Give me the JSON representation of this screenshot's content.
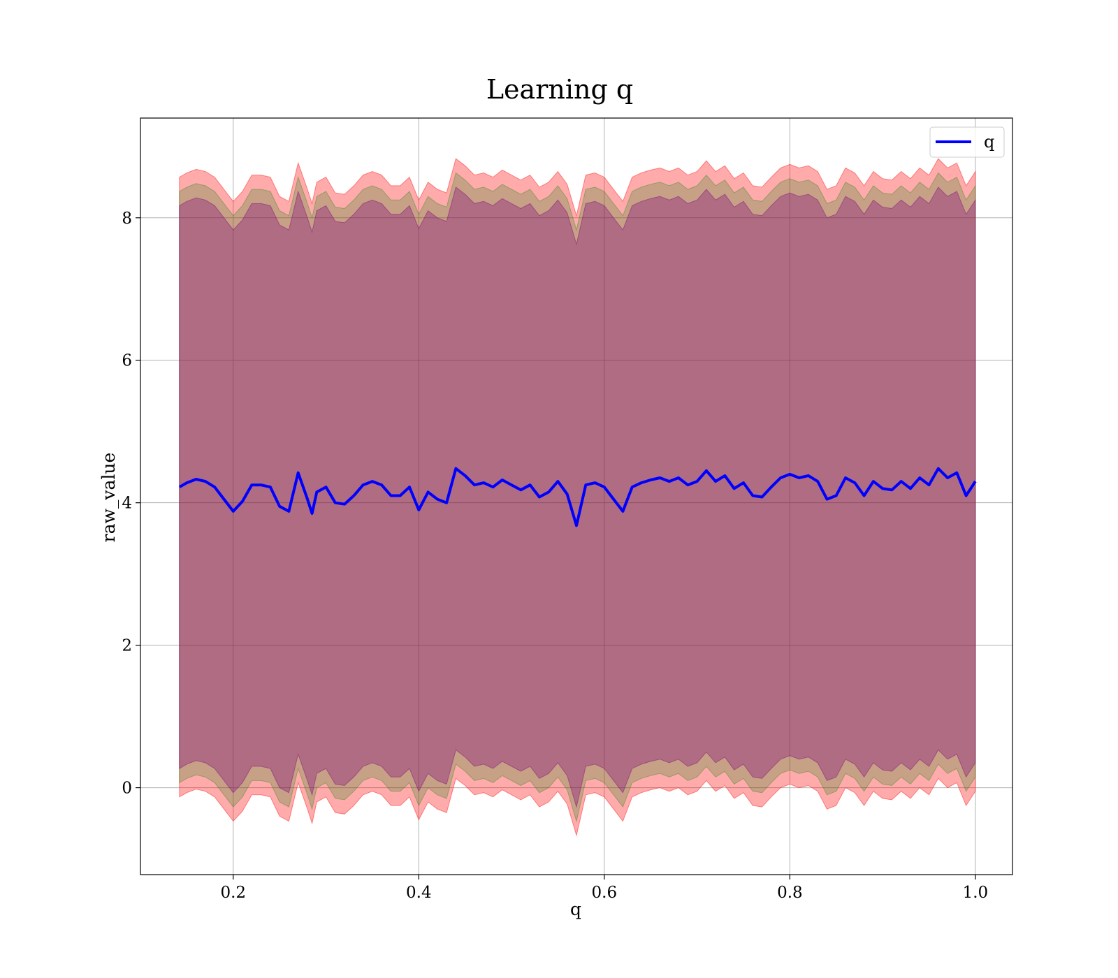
{
  "chart_data": {
    "type": "line",
    "title": "Learning q",
    "xlabel": "q",
    "ylabel": "raw_value",
    "xlim": [
      0.1,
      1.04
    ],
    "ylim": [
      -1.22,
      9.4
    ],
    "xticks": [
      0.2,
      0.4,
      0.6,
      0.8,
      1.0
    ],
    "xtick_labels": [
      "0.2",
      "0.4",
      "0.6",
      "0.8",
      "1.0"
    ],
    "yticks": [
      0,
      2,
      4,
      6,
      8
    ],
    "ytick_labels": [
      "0",
      "2",
      "4",
      "6",
      "8"
    ],
    "grid": true,
    "legend_position": "top-right",
    "series": [
      {
        "name": "q",
        "color": "#0000ff",
        "x": [
          0.142,
          0.15,
          0.16,
          0.17,
          0.18,
          0.19,
          0.2,
          0.21,
          0.22,
          0.23,
          0.24,
          0.25,
          0.26,
          0.27,
          0.28,
          0.285,
          0.29,
          0.3,
          0.31,
          0.32,
          0.33,
          0.34,
          0.35,
          0.36,
          0.37,
          0.38,
          0.39,
          0.4,
          0.41,
          0.42,
          0.43,
          0.44,
          0.45,
          0.46,
          0.47,
          0.48,
          0.49,
          0.5,
          0.51,
          0.52,
          0.53,
          0.54,
          0.55,
          0.56,
          0.57,
          0.58,
          0.59,
          0.6,
          0.61,
          0.62,
          0.63,
          0.64,
          0.65,
          0.66,
          0.67,
          0.68,
          0.69,
          0.7,
          0.71,
          0.72,
          0.73,
          0.74,
          0.75,
          0.76,
          0.77,
          0.78,
          0.79,
          0.8,
          0.81,
          0.82,
          0.83,
          0.84,
          0.85,
          0.86,
          0.87,
          0.88,
          0.89,
          0.9,
          0.91,
          0.92,
          0.93,
          0.94,
          0.95,
          0.96,
          0.97,
          0.98,
          0.99,
          1.0
        ],
        "y": [
          4.22,
          4.28,
          4.33,
          4.3,
          4.22,
          4.05,
          3.88,
          4.02,
          4.25,
          4.25,
          4.22,
          3.95,
          3.88,
          4.42,
          4.05,
          3.85,
          4.15,
          4.22,
          4.0,
          3.98,
          4.1,
          4.25,
          4.3,
          4.25,
          4.1,
          4.1,
          4.22,
          3.9,
          4.15,
          4.05,
          4.0,
          4.48,
          4.38,
          4.25,
          4.28,
          4.22,
          4.32,
          4.25,
          4.18,
          4.25,
          4.08,
          4.15,
          4.3,
          4.12,
          3.68,
          4.25,
          4.28,
          4.22,
          4.05,
          3.88,
          4.22,
          4.28,
          4.32,
          4.35,
          4.3,
          4.35,
          4.25,
          4.3,
          4.45,
          4.3,
          4.38,
          4.2,
          4.28,
          4.1,
          4.08,
          4.22,
          4.35,
          4.4,
          4.35,
          4.38,
          4.3,
          4.05,
          4.1,
          4.35,
          4.28,
          4.1,
          4.3,
          4.2,
          4.18,
          4.3,
          4.2,
          4.35,
          4.25,
          4.48,
          4.35,
          4.42,
          4.1,
          4.3
        ]
      }
    ],
    "bands": [
      {
        "color": "#ff0000",
        "opacity": 0.33,
        "upper_offset": 4.35,
        "lower_offset": -4.35
      },
      {
        "color": "#008000",
        "opacity": 0.22,
        "upper_offset": 4.15,
        "lower_offset": -4.15
      },
      {
        "color": "#800080",
        "opacity": 0.33,
        "upper_offset": 3.95,
        "lower_offset": -3.95
      }
    ]
  }
}
